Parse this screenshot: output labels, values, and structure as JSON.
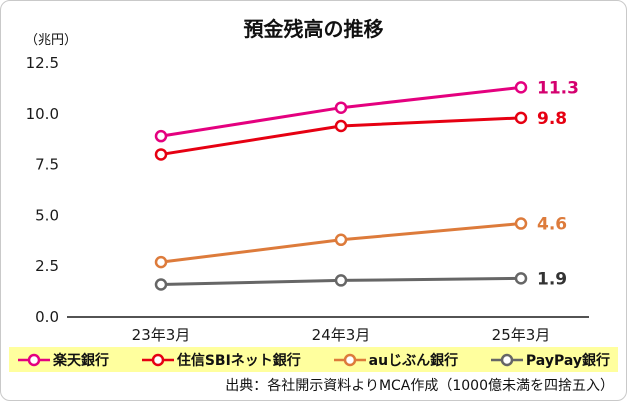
{
  "title": "預金残高の推移",
  "y_axis_unit": "（兆円）",
  "source": "出典：各社開示資料よりMCA作成（1000億未満を四捨五入）",
  "colors": {
    "legend_bg": "#ffff9e",
    "axis": "#1a1a1a"
  },
  "chart_data": {
    "type": "line",
    "title": "預金残高の推移",
    "ylabel": "（兆円）",
    "categories": [
      "23年3月",
      "24年3月",
      "25年3月"
    ],
    "series": [
      {
        "name": "楽天銀行",
        "values": [
          8.9,
          10.3,
          11.3
        ],
        "color": "#e4007f",
        "label": "11.3",
        "label_color": "#d4006f"
      },
      {
        "name": "住信SBIネット銀行",
        "values": [
          8.0,
          9.4,
          9.8
        ],
        "color": "#e60012",
        "label": "9.8",
        "label_color": "#e60012"
      },
      {
        "name": "auじぶん銀行",
        "values": [
          2.7,
          3.8,
          4.6
        ],
        "color": "#dd7b3b",
        "label": "4.6",
        "label_color": "#dd7b3b"
      },
      {
        "name": "PayPay銀行",
        "values": [
          1.6,
          1.8,
          1.9
        ],
        "color": "#666666",
        "label": "1.9",
        "label_color": "#333333"
      }
    ],
    "ylim": [
      0,
      12.5
    ],
    "yticks": [
      "0.0",
      "2.5",
      "5.0",
      "7.5",
      "10.0",
      "12.5"
    ],
    "grid": false,
    "legend_position": "bottom",
    "marker_style": "open-circle"
  }
}
